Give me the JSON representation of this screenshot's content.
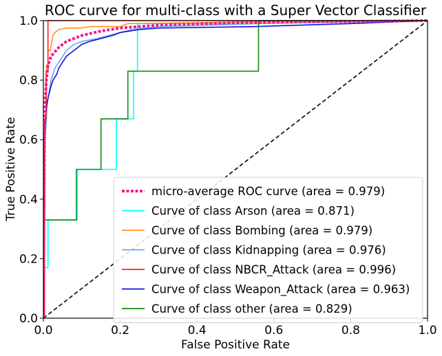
{
  "chart_data": {
    "type": "line",
    "title": "ROC curve for multi-class with a Super Vector Classifier",
    "xlabel": "False Positive Rate",
    "ylabel": "True Positive Rate",
    "xlim": [
      0.0,
      1.0
    ],
    "ylim": [
      0.0,
      1.0
    ],
    "xticks": [
      "0.0",
      "0.2",
      "0.4",
      "0.6",
      "0.8",
      "1.0"
    ],
    "yticks": [
      "0.0",
      "0.2",
      "0.4",
      "0.6",
      "0.8",
      "1.0"
    ],
    "grid": false,
    "legend_position": "lower-right",
    "diagonal": {
      "x": [
        0,
        1
      ],
      "y": [
        0,
        1
      ],
      "color": "#000000",
      "style": "dashed"
    },
    "series": [
      {
        "name": "micro-average ROC curve (area = 0.979)",
        "color": "#ee1e8c",
        "style": "dotted",
        "x": [
          0.0,
          0.003,
          0.005,
          0.008,
          0.012,
          0.02,
          0.04,
          0.06,
          0.1,
          0.15,
          0.2,
          0.3,
          0.5,
          1.0
        ],
        "y": [
          0.0,
          0.66,
          0.74,
          0.8,
          0.85,
          0.88,
          0.91,
          0.93,
          0.95,
          0.965,
          0.975,
          0.985,
          0.993,
          1.0
        ]
      },
      {
        "name": "Curve of class Arson (area = 0.871)",
        "color": "#00ffff",
        "style": "solid",
        "x": [
          0.0,
          0.003,
          0.003,
          0.012,
          0.012,
          0.085,
          0.085,
          0.19,
          0.19,
          0.235,
          0.235,
          0.245,
          0.245,
          0.56,
          0.56,
          1.0
        ],
        "y": [
          0.0,
          0.0,
          0.17,
          0.17,
          0.33,
          0.33,
          0.5,
          0.5,
          0.67,
          0.67,
          0.83,
          0.83,
          0.99,
          0.99,
          1.0,
          1.0
        ]
      },
      {
        "name": "Curve of class Bombing (area = 0.979)",
        "color": "#ff9020",
        "style": "solid",
        "x": [
          0.0,
          0.0,
          0.004,
          0.004,
          0.008,
          0.008,
          0.012,
          0.012,
          0.018,
          0.025,
          0.03,
          0.04,
          0.06,
          0.1,
          0.12,
          0.2,
          0.22,
          0.5,
          1.0
        ],
        "y": [
          0.0,
          0.37,
          0.37,
          0.66,
          0.66,
          0.85,
          0.85,
          0.9,
          0.9,
          0.95,
          0.96,
          0.97,
          0.975,
          0.975,
          0.98,
          0.98,
          0.99,
          0.995,
          1.0
        ]
      },
      {
        "name": "Curve of class Kidnapping (area = 0.976)",
        "color": "#6ca6e8",
        "style": "solid",
        "x": [
          0.0,
          0.0,
          0.005,
          0.01,
          0.02,
          0.03,
          0.045,
          0.06,
          0.08,
          0.1,
          0.14,
          0.2,
          0.23,
          0.3,
          0.56,
          1.0
        ],
        "y": [
          0.0,
          0.3,
          0.6,
          0.72,
          0.8,
          0.84,
          0.87,
          0.9,
          0.92,
          0.93,
          0.94,
          0.96,
          0.97,
          0.98,
          0.99,
          1.0
        ]
      },
      {
        "name": "Curve of class NBCR_Attack (area = 0.996)",
        "color": "#ff2020",
        "style": "solid",
        "x": [
          0.0,
          0.003,
          0.003,
          0.007,
          0.007,
          0.012,
          0.012,
          0.02,
          1.0
        ],
        "y": [
          0.0,
          0.0,
          0.67,
          0.67,
          0.83,
          0.83,
          1.0,
          1.0,
          1.0
        ]
      },
      {
        "name": "Curve of class Weapon_Attack (area = 0.963)",
        "color": "#1010dd",
        "style": "solid",
        "x": [
          0.0,
          0.0,
          0.002,
          0.002,
          0.004,
          0.006,
          0.008,
          0.012,
          0.016,
          0.02,
          0.025,
          0.03,
          0.035,
          0.04,
          0.045,
          0.05,
          0.055,
          0.06,
          0.07,
          0.08,
          0.09,
          0.1,
          0.12,
          0.15,
          0.18,
          0.2,
          0.25,
          0.3,
          0.55,
          0.8,
          1.0
        ],
        "y": [
          0.0,
          0.52,
          0.52,
          0.6,
          0.64,
          0.68,
          0.71,
          0.74,
          0.76,
          0.78,
          0.8,
          0.81,
          0.82,
          0.84,
          0.85,
          0.86,
          0.87,
          0.88,
          0.89,
          0.9,
          0.91,
          0.92,
          0.93,
          0.94,
          0.95,
          0.96,
          0.97,
          0.975,
          0.98,
          0.99,
          1.0
        ]
      },
      {
        "name": "Curve of class other (area = 0.829)",
        "color": "#108a10",
        "style": "solid",
        "x": [
          0.0,
          0.002,
          0.002,
          0.087,
          0.087,
          0.15,
          0.15,
          0.22,
          0.22,
          0.56,
          0.56,
          1.0
        ],
        "y": [
          0.0,
          0.0,
          0.33,
          0.33,
          0.5,
          0.5,
          0.67,
          0.67,
          0.83,
          0.83,
          1.0,
          1.0
        ]
      }
    ]
  }
}
